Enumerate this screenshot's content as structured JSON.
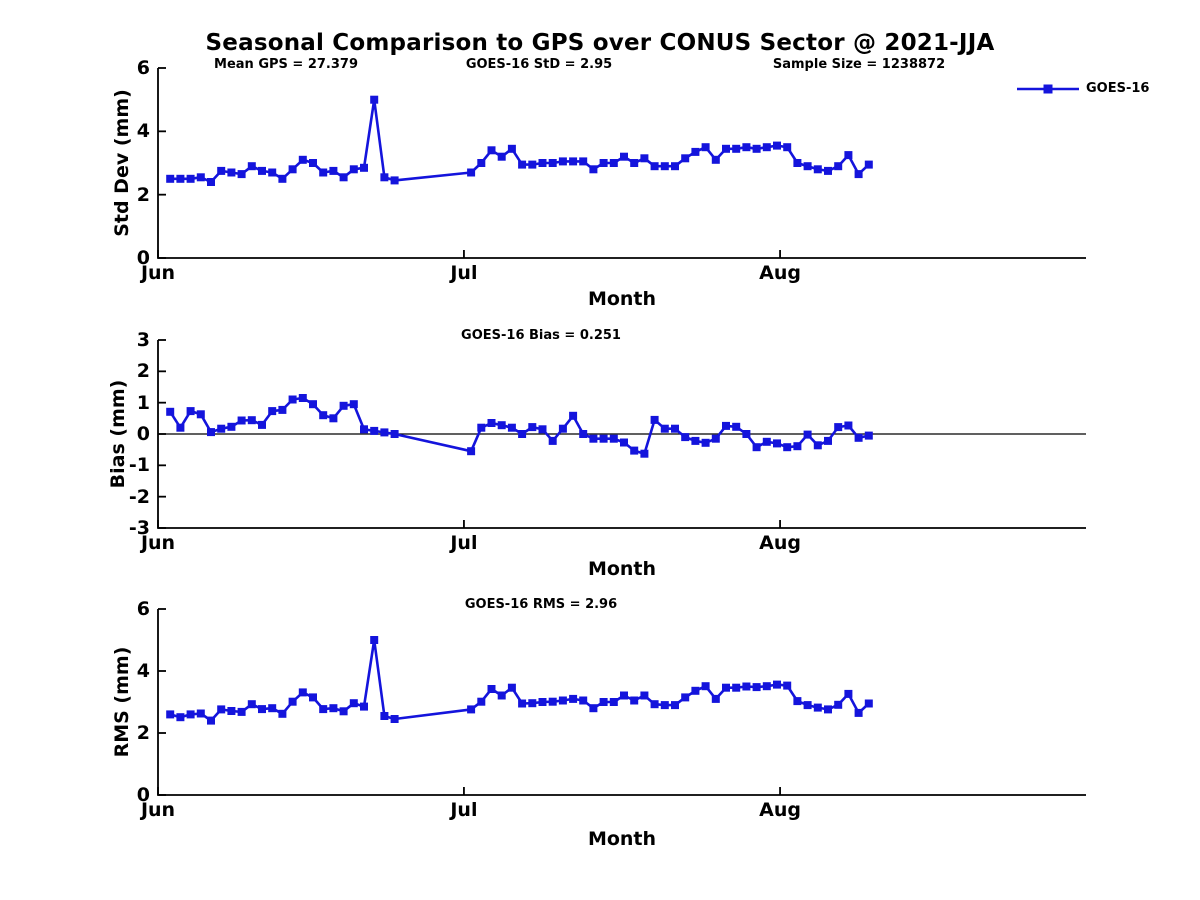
{
  "title": "Seasonal Comparison to GPS over CONUS Sector @ 2021-JJA",
  "chart_data": {
    "type": "line",
    "xlabel": "Month",
    "x_tick_labels": [
      "Jun",
      "Jul",
      "Aug"
    ],
    "x_tick_days": [
      0,
      30,
      61
    ],
    "x_domain_days": [
      0,
      91
    ],
    "series_color": "#1414dc",
    "axis_color": "#000000",
    "legend": {
      "position": "top-right",
      "entries": [
        {
          "label": "GOES-16",
          "marker": "square"
        }
      ]
    },
    "x_days": [
      1.2,
      2.2,
      3.2,
      4.2,
      5.2,
      6.2,
      7.2,
      8.2,
      9.2,
      10.2,
      11.2,
      12.2,
      13.2,
      14.2,
      15.2,
      16.2,
      17.2,
      18.2,
      19.2,
      20.2,
      21.2,
      22.2,
      23.2,
      30.7,
      31.7,
      32.7,
      33.7,
      34.7,
      35.7,
      36.7,
      37.7,
      38.7,
      39.7,
      40.7,
      41.7,
      42.7,
      43.7,
      44.7,
      45.7,
      46.7,
      47.7,
      48.7,
      49.7,
      50.7,
      51.7,
      52.7,
      53.7,
      54.7,
      55.7,
      56.7,
      57.7,
      58.7,
      59.7,
      60.7,
      61.7,
      62.7,
      63.7,
      64.7,
      65.7,
      66.7,
      67.7,
      68.7,
      69.7
    ],
    "subplots": [
      {
        "name": "std_dev",
        "ylabel": "Std Dev (mm)",
        "ylim": [
          0,
          6
        ],
        "yticks": [
          0,
          2,
          4,
          6
        ],
        "zero_line": false,
        "annotations": [
          {
            "text": "Mean GPS = 27.379"
          },
          {
            "text": "GOES-16 StD = 2.95"
          },
          {
            "text": "Sample Size = 1238872"
          }
        ],
        "series": [
          {
            "name": "GOES-16",
            "values": [
              2.5,
              2.5,
              2.5,
              2.55,
              2.4,
              2.75,
              2.7,
              2.65,
              2.9,
              2.75,
              2.7,
              2.5,
              2.8,
              3.1,
              3.0,
              2.7,
              2.75,
              2.55,
              2.8,
              2.85,
              5.0,
              2.55,
              2.45,
              2.7,
              3.0,
              3.4,
              3.2,
              3.45,
              2.95,
              2.95,
              3.0,
              3.0,
              3.05,
              3.05,
              3.05,
              2.8,
              3.0,
              3.0,
              3.2,
              3.0,
              3.15,
              2.9,
              2.9,
              2.9,
              3.15,
              3.35,
              3.5,
              3.1,
              3.45,
              3.45,
              3.5,
              3.45,
              3.5,
              3.55,
              3.5,
              3.0,
              2.9,
              2.8,
              2.75,
              2.9,
              3.25,
              2.65,
              2.95
            ]
          }
        ]
      },
      {
        "name": "bias",
        "ylabel": "Bias (mm)",
        "ylim": [
          -3,
          3
        ],
        "yticks": [
          3,
          2,
          1,
          0,
          -1,
          -2,
          -3
        ],
        "zero_line": true,
        "annotations": [
          {
            "text": "GOES-16 Bias = 0.251"
          }
        ],
        "series": [
          {
            "name": "GOES-16",
            "values": [
              0.71,
              0.2,
              0.73,
              0.63,
              0.06,
              0.17,
              0.23,
              0.43,
              0.44,
              0.29,
              0.73,
              0.77,
              1.1,
              1.15,
              0.95,
              0.6,
              0.5,
              0.9,
              0.95,
              0.15,
              0.1,
              0.05,
              0.0,
              -0.55,
              0.2,
              0.35,
              0.28,
              0.2,
              0.0,
              0.22,
              0.15,
              -0.22,
              0.17,
              0.58,
              0.0,
              -0.15,
              -0.15,
              -0.15,
              -0.27,
              -0.53,
              -0.63,
              0.45,
              0.17,
              0.17,
              -0.1,
              -0.22,
              -0.28,
              -0.15,
              0.26,
              0.23,
              0.0,
              -0.42,
              -0.25,
              -0.3,
              -0.42,
              -0.39,
              -0.02,
              -0.36,
              -0.22,
              0.22,
              0.27,
              -0.12,
              -0.05
            ]
          }
        ]
      },
      {
        "name": "rms",
        "ylabel": "RMS (mm)",
        "ylim": [
          0,
          6
        ],
        "yticks": [
          0,
          2,
          4,
          6
        ],
        "zero_line": false,
        "annotations": [
          {
            "text": "GOES-16 RMS = 2.96"
          }
        ],
        "series": [
          {
            "name": "GOES-16",
            "values": [
              2.6,
              2.51,
              2.6,
              2.63,
              2.4,
              2.76,
              2.71,
              2.68,
              2.93,
              2.77,
              2.8,
              2.62,
              3.01,
              3.31,
              3.15,
              2.77,
              2.8,
              2.7,
              2.96,
              2.85,
              5.0,
              2.55,
              2.45,
              2.76,
              3.01,
              3.42,
              3.21,
              3.46,
              2.95,
              2.96,
              3.0,
              3.01,
              3.05,
              3.1,
              3.05,
              2.8,
              3.0,
              3.0,
              3.21,
              3.05,
              3.21,
              2.93,
              2.9,
              2.9,
              3.15,
              3.36,
              3.51,
              3.1,
              3.46,
              3.46,
              3.5,
              3.48,
              3.51,
              3.56,
              3.53,
              3.03,
              2.9,
              2.82,
              2.76,
              2.91,
              3.26,
              2.65,
              2.95
            ]
          }
        ]
      }
    ]
  }
}
